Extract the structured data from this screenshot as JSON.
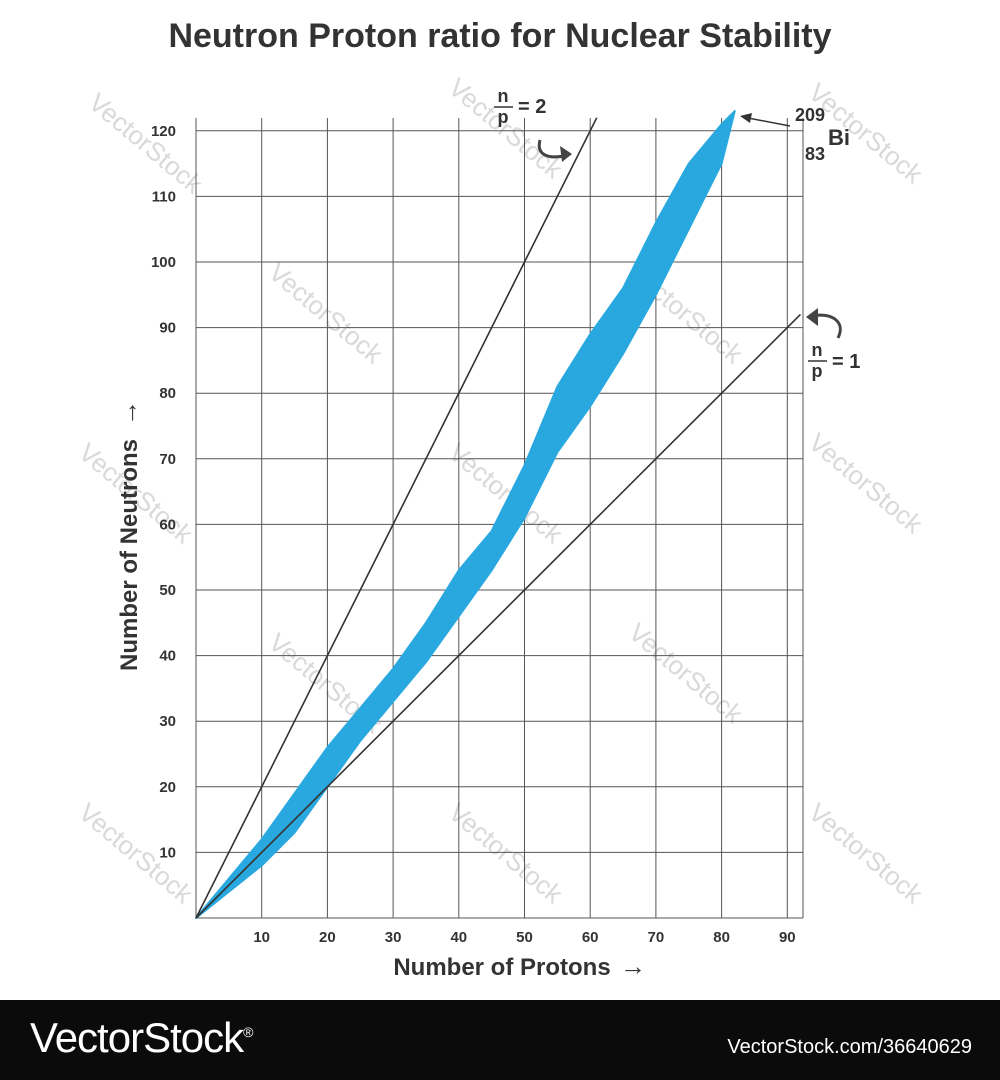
{
  "chart_data": {
    "type": "area",
    "title": "Neutron Proton ratio for Nuclear Stability",
    "xlabel": "Number of Protons",
    "ylabel": "Number of Neutrons",
    "xlim": [
      0,
      92
    ],
    "ylim": [
      0,
      122
    ],
    "xticks": [
      10,
      20,
      30,
      40,
      50,
      60,
      70,
      80,
      90
    ],
    "yticks": [
      10,
      20,
      30,
      40,
      50,
      60,
      70,
      80,
      90,
      100,
      110,
      120
    ],
    "grid": true,
    "band_color": "#29a8e0",
    "line_color": "#333333",
    "series": [
      {
        "name": "",
        "type": "band",
        "x": [
          0,
          5,
          10,
          15,
          20,
          25,
          30,
          35,
          40,
          45,
          50,
          55,
          60,
          65,
          70,
          75,
          80,
          82
        ],
        "upper": [
          0,
          6,
          12,
          19,
          26,
          32,
          38,
          45,
          53,
          59,
          69,
          81,
          89,
          96,
          106,
          115,
          121,
          123
        ],
        "lower": [
          0,
          4,
          8,
          13,
          20,
          27,
          33,
          39,
          46,
          53,
          61,
          71,
          78,
          86,
          95,
          105,
          115,
          123
        ]
      },
      {
        "name": "",
        "type": "line",
        "x": [
          0,
          61
        ],
        "y": [
          0,
          122
        ]
      },
      {
        "name": "",
        "type": "line",
        "x": [
          0,
          92
        ],
        "y": [
          0,
          92
        ]
      }
    ],
    "annotations": [
      {
        "numerator": "n",
        "denominator": "p",
        "eq": "= 2"
      },
      {
        "numerator": "n",
        "denominator": "p",
        "eq": "= 1"
      },
      {
        "mass": "209",
        "atomic": "83",
        "symbol": "Bi"
      }
    ],
    "arrow": "→",
    "up_arrow": "→"
  },
  "footer": {
    "brand": "VectorStock",
    "registered": "®",
    "id": "VectorStock.com/36640629"
  },
  "watermark": "VectorStock"
}
